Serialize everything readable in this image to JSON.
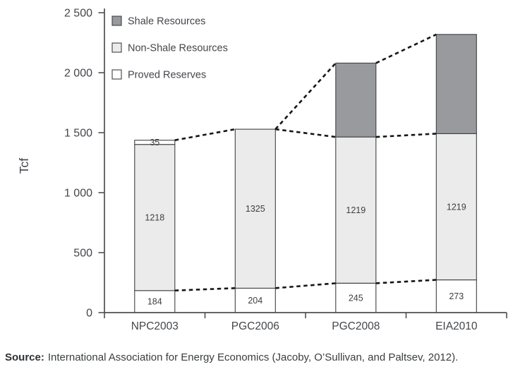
{
  "chart_data": {
    "type": "bar",
    "stacked": true,
    "title": "",
    "xlabel": "",
    "ylabel": "Tcf",
    "categories": [
      "NPC2003",
      "PGC2006",
      "PGC2008",
      "EIA2010"
    ],
    "series": [
      {
        "name": "Proved Reserves",
        "color": "#ffffff",
        "values": [
          184,
          204,
          245,
          273
        ],
        "value_labels": [
          "184",
          "204",
          "245",
          "273"
        ]
      },
      {
        "name": "Non-Shale Resources",
        "color": "#ebebec",
        "values": [
          1218,
          1325,
          1219,
          1219
        ],
        "value_labels": [
          "1218",
          "1325",
          "1219",
          "1219"
        ]
      },
      {
        "name": "Shale Resources",
        "color": "#989a9d",
        "values": [
          35,
          0,
          616,
          827
        ],
        "value_labels": [
          "35",
          "",
          "",
          ""
        ]
      }
    ],
    "totals": [
      1437,
      1529,
      2080,
      2319
    ],
    "ylim": [
      0,
      2500
    ],
    "yticks": [
      0,
      500,
      1000,
      1500,
      2000,
      2500
    ],
    "ytick_labels": [
      "0",
      "500",
      "1 000",
      "1 500",
      "2 000",
      "2 500"
    ],
    "grid": false,
    "legend_position": "inside-top-left",
    "legend": [
      {
        "label": "Shale Resources",
        "color": "#989a9d"
      },
      {
        "label": "Non-Shale Resources",
        "color": "#ebebec"
      },
      {
        "label": "Proved Reserves",
        "color": "#ffffff"
      }
    ],
    "connectors": [
      {
        "name": "total-resources-trend",
        "cum_series": 3,
        "bars": [
          0,
          1,
          2,
          3
        ]
      },
      {
        "name": "non-shale-level-trend",
        "cum_series": 2,
        "bars": [
          1,
          2,
          3
        ]
      },
      {
        "name": "proved-reserves-trend",
        "cum_series": 1,
        "bars": [
          0,
          1,
          2,
          3
        ]
      }
    ]
  },
  "colors": {
    "shale": "#989a9d",
    "non_shale": "#ebebec",
    "proved": "#ffffff",
    "bar_border": "#3f4143",
    "axis": "#4d5052",
    "dashed_line": "#161616",
    "text": "#43464a",
    "label_text": "#3c3f42"
  },
  "source": {
    "label": "Source:",
    "text": "International Association for Energy Economics (Jacoby, O’Sullivan, and Paltsev, 2012)."
  }
}
